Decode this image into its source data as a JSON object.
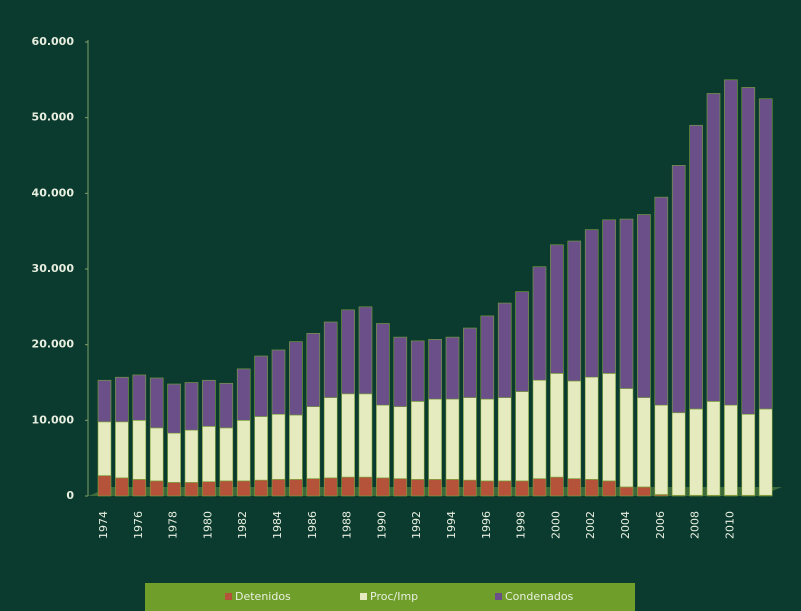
{
  "chart_data": {
    "type": "stacked_bar",
    "categories": [
      "1974",
      null,
      "1976",
      null,
      "1978",
      null,
      "1980",
      null,
      "1982",
      null,
      "1984",
      null,
      "1986",
      null,
      "1988",
      null,
      "1990",
      null,
      "1992",
      null,
      "1994",
      null,
      "1996",
      null,
      "1998",
      null,
      "2000",
      null,
      "2002",
      null,
      "2004",
      null,
      "2006",
      null,
      "2008",
      null,
      "2010",
      null,
      null
    ],
    "series": [
      {
        "name": "Detenidos",
        "color": "#b4533a",
        "values": [
          2700,
          2400,
          2200,
          2000,
          1800,
          1800,
          1900,
          2000,
          2000,
          2100,
          2200,
          2200,
          2300,
          2400,
          2500,
          2500,
          2400,
          2300,
          2200,
          2200,
          2200,
          2100,
          2000,
          2000,
          2000,
          2300,
          2500,
          2300,
          2200,
          2000,
          1200,
          1200,
          200,
          100,
          100,
          100,
          100,
          100,
          100
        ]
      },
      {
        "name": "Proc/Imp",
        "color": "#e6ebbf",
        "values": [
          7100,
          7400,
          7800,
          7000,
          6500,
          6900,
          7300,
          7000,
          8000,
          8400,
          8600,
          8500,
          9500,
          10600,
          11000,
          11000,
          9600,
          9500,
          10300,
          10600,
          10600,
          10900,
          10800,
          11000,
          11800,
          13000,
          13700,
          12900,
          13500,
          14200,
          13000,
          11800,
          11800,
          10900,
          11400,
          12400,
          11900,
          10700,
          11400
        ]
      },
      {
        "name": "Condenados",
        "color": "#6a4f88",
        "values": [
          5500,
          5900,
          6000,
          6600,
          6500,
          6300,
          6100,
          5900,
          6800,
          8000,
          8500,
          9700,
          9700,
          10000,
          11100,
          11500,
          10800,
          9200,
          8000,
          7900,
          8200,
          9200,
          11000,
          12500,
          13200,
          15000,
          17000,
          18500,
          19500,
          20300,
          22400,
          24200,
          27500,
          32700,
          37500,
          40700,
          43000,
          43200,
          41000
        ]
      }
    ],
    "ylim": [
      0,
      60000
    ],
    "yticks": [
      0,
      {
        "value": 10000,
        "label": "10.000"
      },
      {
        "value": 20000,
        "label": "20.000"
      },
      {
        "value": 30000,
        "label": "30.000"
      },
      {
        "value": 40000,
        "label": "40.000"
      },
      {
        "value": 50000,
        "label": "50.000"
      },
      {
        "value": 60000,
        "label": "60.000"
      }
    ],
    "legend": "bottom"
  }
}
